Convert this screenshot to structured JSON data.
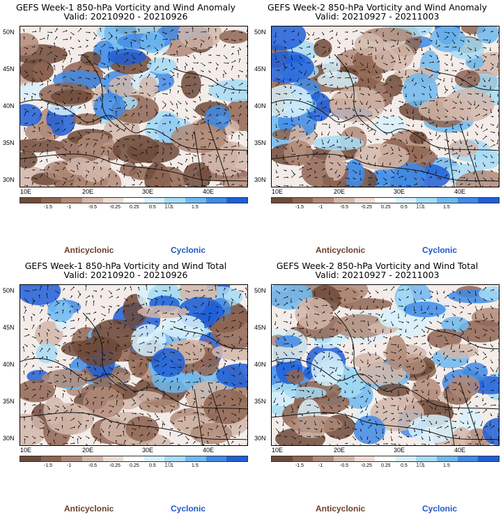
{
  "panels": [
    {
      "title1": "GEFS Week-1 850-hPa Vorticity and Wind Anomaly",
      "title2": "Valid: 20210920 - 20210926"
    },
    {
      "title1": "GEFS Week-2 850-hPa Vorticity and Wind Anomaly",
      "title2": "Valid: 20210927 - 20211003"
    },
    {
      "title1": "GEFS Week-1 850-hPa Vorticity and Wind Total",
      "title2": "Valid: 20210920 - 20210926"
    },
    {
      "title1": "GEFS Week-2 850-hPa Vorticity and Wind Total",
      "title2": "Valid: 20210927 - 20211003"
    }
  ],
  "lat_labels": [
    "50N",
    "45N",
    "40N",
    "35N",
    "30N"
  ],
  "lon_labels": [
    "10E",
    "20E",
    "30E",
    "40E"
  ],
  "colorbar": {
    "labels": [
      "-1.5",
      "-1",
      "-0.5",
      "-0.25",
      "0.25",
      "0.5",
      "1",
      "1.5"
    ],
    "scale": "10",
    "scale_exp": "-5",
    "colors": [
      "#6e4a3a",
      "#8f6552",
      "#b08a78",
      "#d2b7aa",
      "#ecdcd5",
      "#ffffff",
      "#d8f1fb",
      "#a6dcf5",
      "#6fb8ee",
      "#3f8be6",
      "#1f5fd8"
    ]
  },
  "legend": {
    "anticyclonic": "Anticyclonic",
    "cyclonic": "Cyclonic"
  },
  "colors": {
    "anticyclonic": "#6b3f2a",
    "cyclonic": "#1e56c8"
  },
  "icons": [
    "vorticity-field-map",
    "wind-vector-arrows",
    "coastline-outline"
  ]
}
